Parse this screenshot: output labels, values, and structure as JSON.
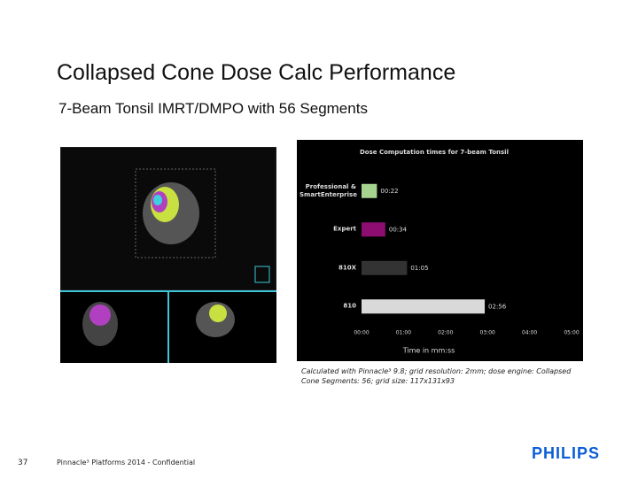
{
  "slide": {
    "title": "Collapsed Cone Dose Calc Performance",
    "subtitle": "7-Beam Tonsil IMRT/DMPO with 56 Segments",
    "note": "Calculated with Pinnacle³ 9.8; grid resolution: 2mm; dose engine: Collapsed Cone Segments: 56; grid size: 117x131x93",
    "footer": "Pinnacle³ Platforms 2014 - Confidential",
    "page_number": "37",
    "logo": "PHILIPS"
  },
  "chart_data": {
    "type": "hbar",
    "title": "Dose Computation times for 7-beam Tonsil",
    "x_label": "Time in mm:ss",
    "categories": [
      "Professional & SmartEnterprise",
      "Expert",
      "810X",
      "810"
    ],
    "values": [
      22,
      34,
      65,
      176
    ],
    "value_labels": [
      "00:22",
      "00:34",
      "01:05",
      "02:56"
    ],
    "colors": [
      "#a6d48e",
      "#8e0d70",
      "#333333",
      "#d9d9d9"
    ],
    "xlim": [
      0,
      300
    ],
    "xticks": [
      {
        "value": 0,
        "label": "00:00"
      },
      {
        "value": 60,
        "label": "01:00"
      },
      {
        "value": 120,
        "label": "02:00"
      },
      {
        "value": 180,
        "label": "03:00"
      },
      {
        "value": 240,
        "label": "04:00"
      },
      {
        "value": 300,
        "label": "05:00"
      }
    ]
  }
}
